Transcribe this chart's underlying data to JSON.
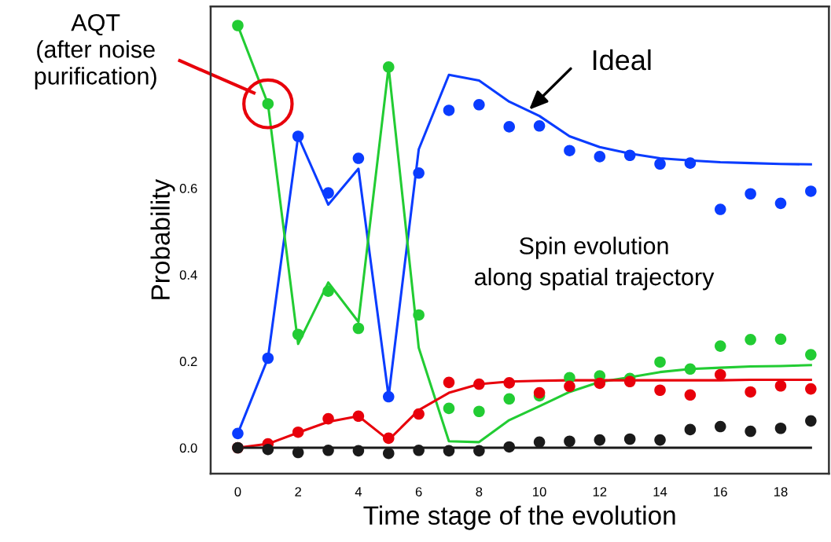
{
  "chart_data": {
    "type": "scatter",
    "xlabel": "Time stage of the evolution",
    "ylabel": "Probability",
    "x": [
      0,
      1,
      2,
      3,
      4,
      5,
      6,
      7,
      8,
      9,
      10,
      11,
      12,
      13,
      14,
      15,
      16,
      17,
      18,
      19
    ],
    "xlim": [
      -0.9,
      19.6
    ],
    "xticks": [
      0,
      2,
      4,
      6,
      8,
      10,
      12,
      14,
      16,
      18
    ],
    "ylim": [
      -0.06,
      1.02
    ],
    "yticks": [
      {
        "value": 0,
        "label": "0.0"
      },
      0.2,
      0.4,
      0.6
    ],
    "grid": false,
    "line_style": "solid",
    "series": [
      {
        "type": "line",
        "color": "#0a3cff",
        "values": [
          0.033,
          0.207,
          0.72,
          0.562,
          0.645,
          0.118,
          0.69,
          0.862,
          0.849,
          0.8,
          0.767,
          0.72,
          0.695,
          0.68,
          0.669,
          0.664,
          0.66,
          0.658,
          0.656,
          0.655
        ]
      },
      {
        "type": "line",
        "color": "#22cc33",
        "values": [
          0.976,
          0.795,
          0.24,
          0.382,
          0.291,
          0.88,
          0.231,
          0.015,
          0.013,
          0.064,
          0.096,
          0.129,
          0.152,
          0.163,
          0.175,
          0.182,
          0.185,
          0.188,
          0.189,
          0.191
        ]
      },
      {
        "type": "line",
        "color": "#e8000b",
        "values": [
          0,
          0.009,
          0.035,
          0.06,
          0.073,
          0.018,
          0.087,
          0.127,
          0.147,
          0.153,
          0.155,
          0.156,
          0.156,
          0.156,
          0.156,
          0.156,
          0.156,
          0.157,
          0.157,
          0.157
        ]
      },
      {
        "type": "line",
        "color": "#1a1a1a",
        "values": [
          0,
          0,
          0,
          0,
          0,
          0,
          0,
          0,
          0,
          0,
          0,
          0,
          0,
          0,
          0,
          0,
          0,
          0,
          0,
          0
        ]
      },
      {
        "marker": "circle",
        "color": "#0a3cff",
        "values": [
          0.033,
          0.207,
          0.72,
          0.589,
          0.669,
          0.118,
          0.635,
          0.78,
          0.793,
          0.742,
          0.744,
          0.687,
          0.673,
          0.676,
          0.656,
          0.658,
          0.551,
          0.587,
          0.565,
          0.593
        ]
      },
      {
        "marker": "circle",
        "color": "#22cc33",
        "values": [
          0.976,
          0.795,
          0.262,
          0.362,
          0.276,
          0.88,
          0.307,
          0.091,
          0.084,
          0.113,
          0.12,
          0.162,
          0.166,
          0.16,
          0.198,
          0.182,
          0.235,
          0.25,
          0.251,
          0.215
        ]
      },
      {
        "marker": "circle",
        "color": "#e8000b",
        "values": [
          0,
          0.009,
          0.036,
          0.067,
          0.073,
          0.022,
          0.078,
          0.151,
          0.147,
          0.15,
          0.127,
          0.142,
          0.149,
          0.153,
          0.133,
          0.122,
          0.169,
          0.129,
          0.143,
          0.136
        ]
      },
      {
        "marker": "circle",
        "color": "#1a1a1a",
        "values": [
          0,
          -0.004,
          -0.011,
          -0.006,
          -0.007,
          -0.013,
          -0.006,
          -0.007,
          -0.007,
          0.002,
          0.013,
          0.015,
          0.018,
          0.02,
          0.018,
          0.042,
          0.049,
          0.038,
          0.045,
          0.062
        ]
      }
    ],
    "annotations": [
      "AQT\n(after noise\npurification)",
      "Ideal",
      "Spin evolution\nalong spatial trajectory"
    ]
  }
}
